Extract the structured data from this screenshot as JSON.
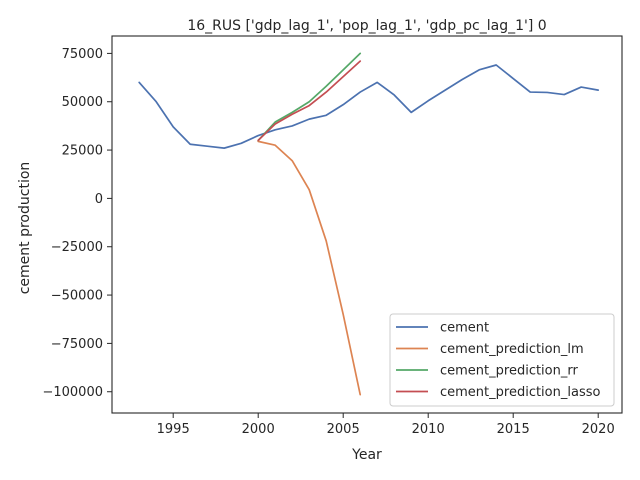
{
  "chart_data": {
    "type": "line",
    "title": "16_RUS ['gdp_lag_1', 'pop_lag_1', 'gdp_pc_lag_1'] 0",
    "xlabel": "Year",
    "ylabel": "cement production",
    "xlim": [
      1991.4,
      2021.4
    ],
    "ylim": [
      -111000,
      84000
    ],
    "xticks": [
      1995,
      2000,
      2005,
      2010,
      2015,
      2020
    ],
    "yticks": [
      -100000,
      -75000,
      -50000,
      -25000,
      0,
      25000,
      50000,
      75000
    ],
    "xtick_labels": [
      "1995",
      "2000",
      "2005",
      "2010",
      "2015",
      "2020"
    ],
    "ytick_labels": [
      "−100000",
      "−75000",
      "−50000",
      "−25000",
      "0",
      "25000",
      "50000",
      "75000"
    ],
    "grid": false,
    "legend_position": "lower-right",
    "series": [
      {
        "name": "cement",
        "color": "#4c72b0",
        "x": [
          1993,
          1994,
          1995,
          1996,
          1997,
          1998,
          1999,
          2000,
          2001,
          2002,
          2003,
          2004,
          2005,
          2006,
          2007,
          2008,
          2009,
          2010,
          2011,
          2012,
          2013,
          2014,
          2015,
          2016,
          2017,
          2018,
          2019,
          2020
        ],
        "y": [
          60000,
          50000,
          37000,
          28000,
          27000,
          26000,
          28500,
          32500,
          35500,
          37500,
          41000,
          43000,
          48500,
          55000,
          60000,
          53500,
          44500,
          50500,
          56000,
          61500,
          66500,
          69000,
          62000,
          55000,
          54800,
          53700,
          57600,
          56000
        ]
      },
      {
        "name": "cement_prediction_lm",
        "color": "#dd8452",
        "x": [
          2000,
          2001,
          2002,
          2003,
          2004,
          2005,
          2006
        ],
        "y": [
          29500,
          27500,
          19500,
          4500,
          -22000,
          -60000,
          -101500
        ]
      },
      {
        "name": "cement_prediction_rr",
        "color": "#55a868",
        "x": [
          2000,
          2001,
          2002,
          2003,
          2004,
          2005,
          2006
        ],
        "y": [
          30000,
          39500,
          44500,
          50000,
          58000,
          66500,
          75000
        ]
      },
      {
        "name": "cement_prediction_lasso",
        "color": "#c44e52",
        "x": [
          2000,
          2001,
          2002,
          2003,
          2004,
          2005,
          2006
        ],
        "y": [
          30000,
          38500,
          43500,
          48000,
          55000,
          63000,
          71000
        ]
      }
    ]
  }
}
